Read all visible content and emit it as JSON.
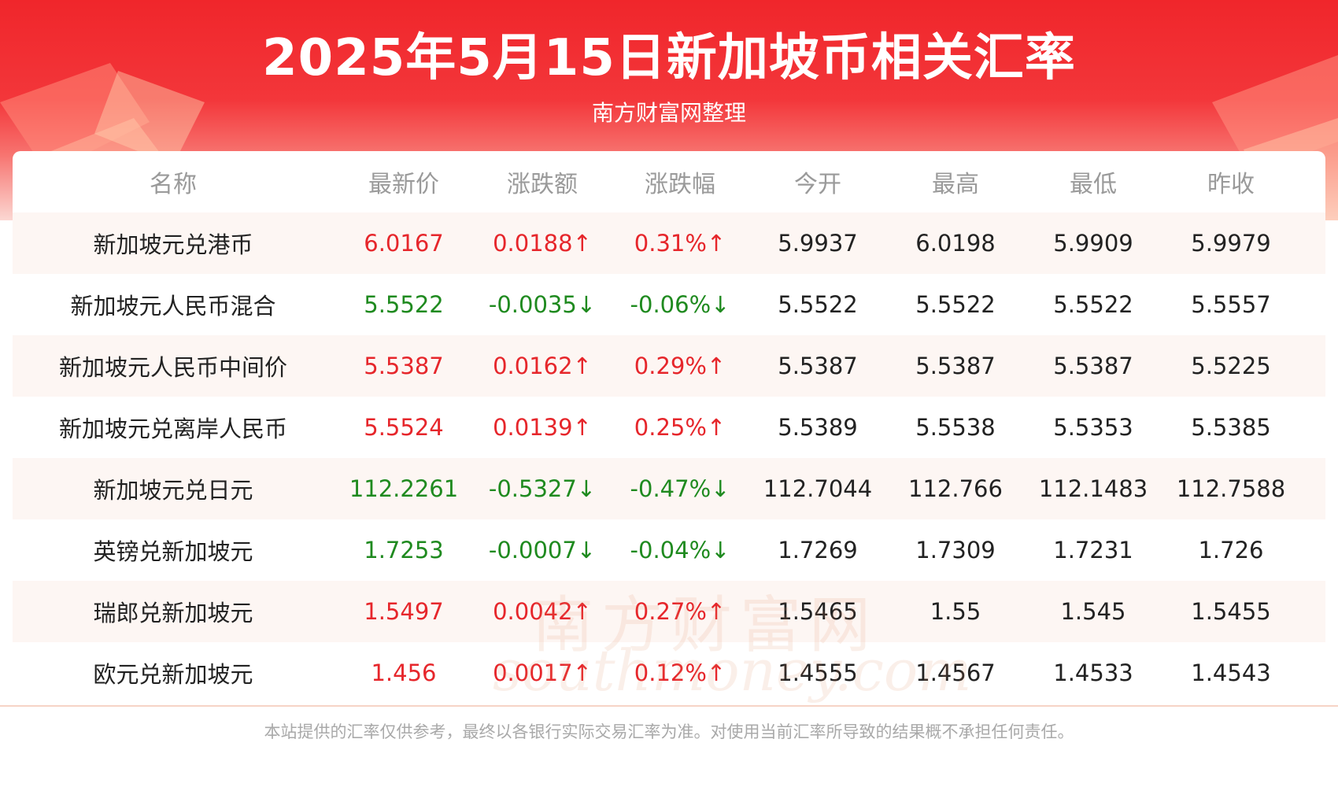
{
  "header": {
    "title": "2025年5月15日新加坡币相关汇率",
    "subtitle": "南方财富网整理"
  },
  "colors": {
    "header_red": "#f0262b",
    "up": "#e6262b",
    "down": "#1f8a1f",
    "row_alt": "#fdf6f3"
  },
  "table": {
    "columns": [
      "名称",
      "最新价",
      "涨跌额",
      "涨跌幅",
      "今开",
      "最高",
      "最低",
      "昨收"
    ],
    "rows": [
      {
        "name": "新加坡元兑港币",
        "last": "6.0167",
        "change": "0.0188↑",
        "pct": "0.31%↑",
        "open": "5.9937",
        "high": "6.0198",
        "low": "5.9909",
        "prev": "5.9979",
        "trend": "up"
      },
      {
        "name": "新加坡元人民币混合",
        "last": "5.5522",
        "change": "-0.0035↓",
        "pct": "-0.06%↓",
        "open": "5.5522",
        "high": "5.5522",
        "low": "5.5522",
        "prev": "5.5557",
        "trend": "down"
      },
      {
        "name": "新加坡元人民币中间价",
        "last": "5.5387",
        "change": "0.0162↑",
        "pct": "0.29%↑",
        "open": "5.5387",
        "high": "5.5387",
        "low": "5.5387",
        "prev": "5.5225",
        "trend": "up"
      },
      {
        "name": "新加坡元兑离岸人民币",
        "last": "5.5524",
        "change": "0.0139↑",
        "pct": "0.25%↑",
        "open": "5.5389",
        "high": "5.5538",
        "low": "5.5353",
        "prev": "5.5385",
        "trend": "up"
      },
      {
        "name": "新加坡元兑日元",
        "last": "112.2261",
        "change": "-0.5327↓",
        "pct": "-0.47%↓",
        "open": "112.7044",
        "high": "112.766",
        "low": "112.1483",
        "prev": "112.7588",
        "trend": "down"
      },
      {
        "name": "英镑兑新加坡元",
        "last": "1.7253",
        "change": "-0.0007↓",
        "pct": "-0.04%↓",
        "open": "1.7269",
        "high": "1.7309",
        "low": "1.7231",
        "prev": "1.726",
        "trend": "down"
      },
      {
        "name": "瑞郎兑新加坡元",
        "last": "1.5497",
        "change": "0.0042↑",
        "pct": "0.27%↑",
        "open": "1.5465",
        "high": "1.55",
        "low": "1.545",
        "prev": "1.5455",
        "trend": "up"
      },
      {
        "name": "欧元兑新加坡元",
        "last": "1.456",
        "change": "0.0017↑",
        "pct": "0.12%↑",
        "open": "1.4555",
        "high": "1.4567",
        "low": "1.4533",
        "prev": "1.4543",
        "trend": "up"
      }
    ]
  },
  "watermark": {
    "cn": "南方财富网",
    "en": "southmoney.com"
  },
  "footer": {
    "note": "本站提供的汇率仅供参考，最终以各银行实际交易汇率为准。对使用当前汇率所导致的结果概不承担任何责任。"
  }
}
